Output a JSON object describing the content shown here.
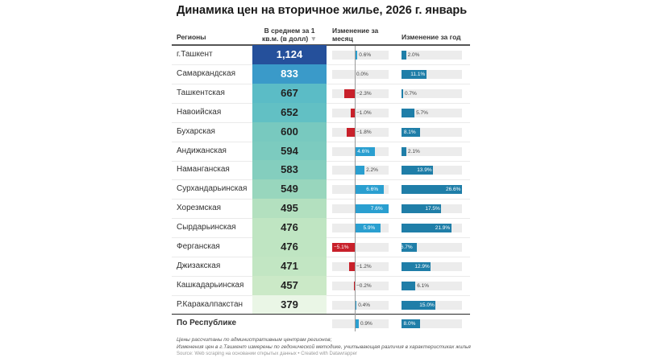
{
  "chart_data": {
    "type": "table",
    "title": "Динамика цен на вторичное жилье, 2026 г. январь",
    "columns": [
      "Регионы",
      "В среднем за 1 кв.м. (в долл)",
      "Изменение за месяц",
      "Изменение за год"
    ],
    "sort_indicator": "▼",
    "rows": [
      {
        "region": "г.Ташкент",
        "price": "1,124",
        "month": 0.6,
        "year": 2.0,
        "color": "#25509b",
        "text": "#ffffff"
      },
      {
        "region": "Самаркандская",
        "price": "833",
        "month": 0.0,
        "year": 11.1,
        "color": "#3a9ac9",
        "text": "#ffffff"
      },
      {
        "region": "Ташкентская",
        "price": "667",
        "month": -2.3,
        "year": 0.7,
        "color": "#5bbcc6",
        "text": "#222222"
      },
      {
        "region": "Навоийская",
        "price": "652",
        "month": -1.0,
        "year": 5.7,
        "color": "#62c0c4",
        "text": "#222222"
      },
      {
        "region": "Бухарская",
        "price": "600",
        "month": -1.8,
        "year": 8.1,
        "color": "#78c9bf",
        "text": "#222222"
      },
      {
        "region": "Андижанская",
        "price": "594",
        "month": 4.6,
        "year": 2.1,
        "color": "#7ccbbf",
        "text": "#222222"
      },
      {
        "region": "Наманганская",
        "price": "583",
        "month": 2.2,
        "year": 13.9,
        "color": "#84cebe",
        "text": "#222222"
      },
      {
        "region": "Сурхандарьинская",
        "price": "549",
        "month": 6.6,
        "year": 26.6,
        "color": "#98d6bd",
        "text": "#222222"
      },
      {
        "region": "Хорезмская",
        "price": "495",
        "month": 7.6,
        "year": 17.5,
        "color": "#b3e0bf",
        "text": "#222222"
      },
      {
        "region": "Сырдарьинская",
        "price": "476",
        "month": 5.9,
        "year": 21.9,
        "color": "#bfe5c2",
        "text": "#222222"
      },
      {
        "region": "Ферганская",
        "price": "476",
        "month": -5.1,
        "year": 6.7,
        "color": "#bfe5c2",
        "text": "#222222"
      },
      {
        "region": "Джизакская",
        "price": "471",
        "month": -1.2,
        "year": 12.9,
        "color": "#c2e6c3",
        "text": "#222222"
      },
      {
        "region": "Кашкадарьинская",
        "price": "457",
        "month": -0.2,
        "year": 6.1,
        "color": "#cbe9c7",
        "text": "#222222"
      },
      {
        "region": "Р.Каракалпакстан",
        "price": "379",
        "month": 0.4,
        "year": 15.0,
        "color": "#eaf6e6",
        "text": "#222222"
      }
    ],
    "total": {
      "region": "По Республике",
      "month": 0.9,
      "year": 8.0
    },
    "colors": {
      "positive_month": "#2a9fd0",
      "negative_month": "#c8202a",
      "year": "#1f7ea8"
    }
  },
  "notes": [
    "Цены рассчитаны по административным центрам регионов;",
    "Изменения цен в г.Ташкент измерены по гедонической методике, учитывающая различия в характеристиках жилья"
  ],
  "source": "Source: Web scraping на основании открытых данных • Created with Datawrapper"
}
